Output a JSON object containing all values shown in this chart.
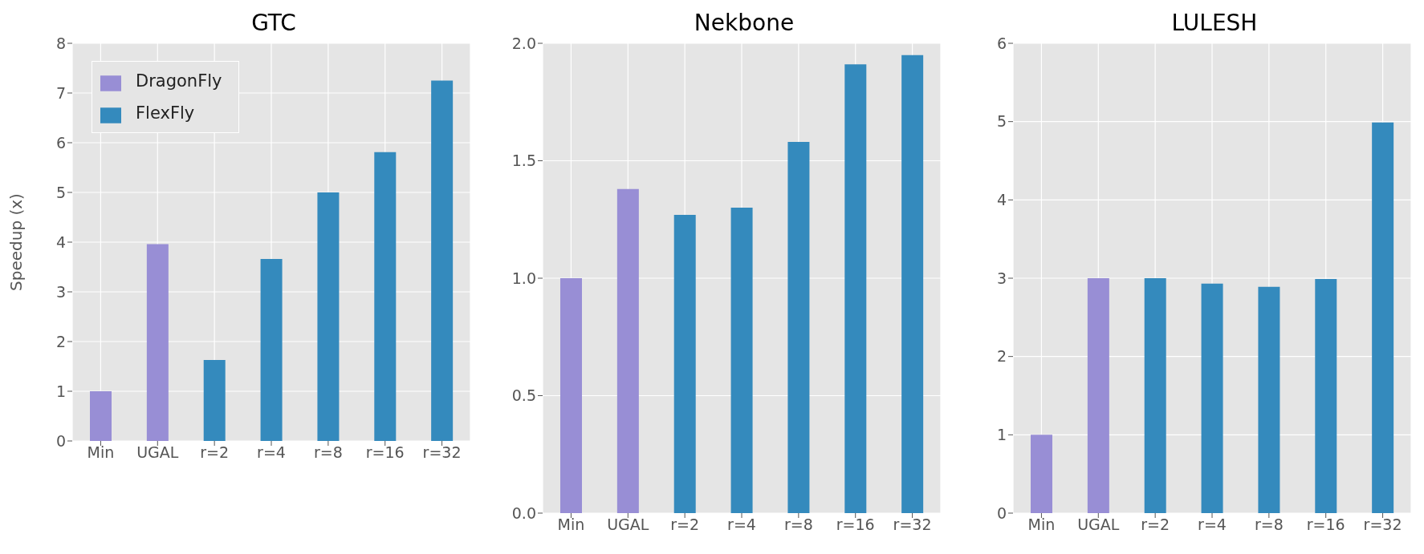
{
  "chart_data": [
    {
      "type": "bar",
      "title": "GTC",
      "ylabel": "Speedup (x)",
      "categories": [
        "Min",
        "UGAL",
        "r=2",
        "r=4",
        "r=8",
        "r=16",
        "r=32"
      ],
      "series": [
        {
          "name": "DragonFly",
          "color": "#988ed5",
          "values": [
            1.0,
            3.96,
            null,
            null,
            null,
            null,
            null
          ]
        },
        {
          "name": "FlexFly",
          "color": "#348abd",
          "values": [
            null,
            null,
            1.63,
            3.66,
            5.0,
            5.81,
            7.25
          ]
        }
      ],
      "ylim": [
        0,
        8
      ],
      "yticks": [
        0,
        1,
        2,
        3,
        4,
        5,
        6,
        7,
        8
      ],
      "grid": true,
      "legend": "top left"
    },
    {
      "type": "bar",
      "title": "Nekbone",
      "categories": [
        "Min",
        "UGAL",
        "r=2",
        "r=4",
        "r=8",
        "r=16",
        "r=32"
      ],
      "series": [
        {
          "color": "#988ed5",
          "values": [
            1.0,
            1.38,
            null,
            null,
            null,
            null,
            null
          ]
        },
        {
          "color": "#348abd",
          "values": [
            null,
            null,
            1.27,
            1.3,
            1.58,
            1.91,
            1.95
          ]
        }
      ],
      "ylim": [
        0,
        2
      ],
      "yticks": [
        {
          "value": 0,
          "label": "0.0"
        },
        {
          "value": 0.5,
          "label": "0.5"
        },
        {
          "value": 1,
          "label": "1.0"
        },
        {
          "value": 1.5,
          "label": "1.5"
        },
        {
          "value": 2,
          "label": "2.0"
        }
      ],
      "grid": true
    },
    {
      "type": "bar",
      "title": "LULESH",
      "categories": [
        "Min",
        "UGAL",
        "r=2",
        "r=4",
        "r=8",
        "r=16",
        "r=32"
      ],
      "series": [
        {
          "color": "#988ed5",
          "values": [
            1.0,
            3.0,
            null,
            null,
            null,
            null,
            null
          ]
        },
        {
          "color": "#348abd",
          "values": [
            null,
            null,
            3.0,
            2.93,
            2.89,
            2.99,
            4.99
          ]
        }
      ],
      "ylim": [
        0,
        6
      ],
      "yticks": [
        0,
        1,
        2,
        3,
        4,
        5,
        6
      ],
      "grid": true
    }
  ]
}
